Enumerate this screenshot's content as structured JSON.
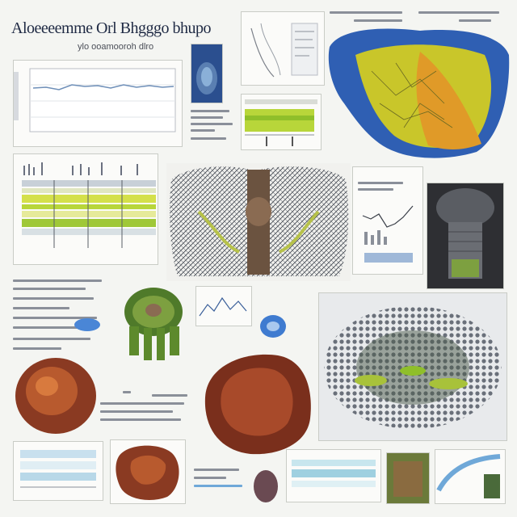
{
  "header": {
    "title": "Aloeeeemme Orl Bhgggo bhupo",
    "subtitle": "ylo ooamooroh dlro"
  },
  "colors": {
    "organ_blue": "#2f5fb3",
    "organ_yellow": "#c9c62a",
    "lime_band": "#b8d63a",
    "organ_red": "#8a3a22",
    "frame_border": "#c9ccc6",
    "text_gray": "#8a8f99"
  },
  "panels": [
    {
      "name": "line-chart-panel"
    },
    {
      "name": "small-organ-thumbnail"
    },
    {
      "name": "sketch-diagram-panel"
    },
    {
      "name": "layered-organ-render"
    },
    {
      "name": "green-band-chart"
    },
    {
      "name": "striped-band-chart"
    },
    {
      "name": "mesh-torso-render"
    },
    {
      "name": "mini-chart-panel"
    },
    {
      "name": "dome-structure-render"
    },
    {
      "name": "green-creature-render"
    },
    {
      "name": "textured-sphere-render"
    },
    {
      "name": "brown-blob-render"
    },
    {
      "name": "mesh-grid-render"
    },
    {
      "name": "bottom-strip-thumbnails"
    }
  ]
}
